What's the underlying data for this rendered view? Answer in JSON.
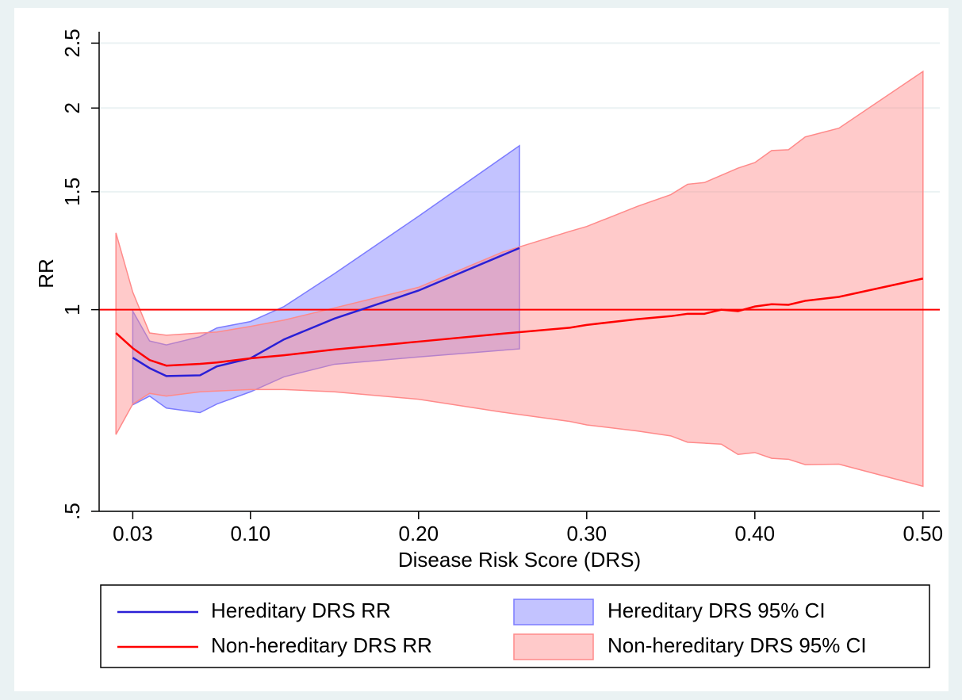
{
  "chart_data": {
    "type": "line",
    "x_label": "Disease Risk Score (DRS)",
    "y_label": "RR",
    "xlim": [
      0.01,
      0.51
    ],
    "xticks": [
      {
        "value": 0.03,
        "label": "0.03"
      },
      {
        "value": 0.1,
        "label": "0.10"
      },
      {
        "value": 0.2,
        "label": "0.20"
      },
      {
        "value": 0.3,
        "label": "0.30"
      },
      {
        "value": 0.4,
        "label": "0.40"
      },
      {
        "value": 0.5,
        "label": "0.50"
      }
    ],
    "ylim": [
      0.5,
      2.6
    ],
    "yticks": [
      {
        "value": 0.5,
        "label": ".5"
      },
      1,
      1.5,
      2,
      2.5
    ],
    "y_scale": "log",
    "grid": true,
    "reference_line": {
      "value": 1,
      "color": "#ff0000"
    },
    "bands": [
      {
        "name": "Hereditary DRS 95% CI",
        "color": "#7b7bff",
        "x": [
          0.03,
          0.04,
          0.05,
          0.07,
          0.08,
          0.1,
          0.12,
          0.15,
          0.2,
          0.26
        ],
        "upper": [
          0.995,
          0.898,
          0.886,
          0.911,
          0.939,
          0.96,
          1.011,
          1.132,
          1.379,
          1.757
        ],
        "lower": [
          0.721,
          0.743,
          0.713,
          0.702,
          0.723,
          0.754,
          0.794,
          0.829,
          0.85,
          0.874
        ]
      },
      {
        "name": "Non-hereditary DRS 95% CI",
        "color": "#ff8a8a",
        "x": [
          0.02,
          0.03,
          0.04,
          0.05,
          0.07,
          0.08,
          0.1,
          0.12,
          0.15,
          0.2,
          0.25,
          0.29,
          0.3,
          0.33,
          0.35,
          0.36,
          0.37,
          0.38,
          0.39,
          0.4,
          0.41,
          0.42,
          0.43,
          0.45,
          0.5
        ],
        "upper": [
          1.302,
          1.062,
          0.923,
          0.916,
          0.923,
          0.926,
          0.944,
          0.965,
          1.006,
          1.08,
          1.219,
          1.309,
          1.331,
          1.426,
          1.485,
          1.539,
          1.548,
          1.587,
          1.627,
          1.658,
          1.728,
          1.733,
          1.811,
          1.866,
          2.268
        ],
        "lower": [
          0.651,
          0.723,
          0.75,
          0.743,
          0.754,
          0.756,
          0.76,
          0.76,
          0.754,
          0.735,
          0.703,
          0.681,
          0.673,
          0.659,
          0.648,
          0.634,
          0.632,
          0.63,
          0.608,
          0.612,
          0.6,
          0.598,
          0.587,
          0.588,
          0.545
        ]
      }
    ],
    "series": [
      {
        "name": "Hereditary DRS RR",
        "color": "#2a1fd6",
        "x": [
          0.03,
          0.04,
          0.05,
          0.07,
          0.08,
          0.1,
          0.12,
          0.15,
          0.2,
          0.26
        ],
        "values": [
          0.848,
          0.818,
          0.796,
          0.798,
          0.823,
          0.846,
          0.903,
          0.97,
          1.068,
          1.236
        ]
      },
      {
        "name": "Non-hereditary DRS RR",
        "color": "#ff0000",
        "x": [
          0.02,
          0.03,
          0.04,
          0.05,
          0.07,
          0.08,
          0.1,
          0.12,
          0.15,
          0.2,
          0.25,
          0.29,
          0.3,
          0.33,
          0.35,
          0.36,
          0.37,
          0.38,
          0.39,
          0.4,
          0.41,
          0.42,
          0.43,
          0.45,
          0.5
        ],
        "values": [
          0.923,
          0.876,
          0.841,
          0.825,
          0.83,
          0.834,
          0.846,
          0.855,
          0.872,
          0.896,
          0.921,
          0.94,
          0.949,
          0.968,
          0.978,
          0.986,
          0.986,
          1.0,
          0.995,
          1.011,
          1.019,
          1.017,
          1.031,
          1.045,
          1.113
        ]
      }
    ]
  }
}
